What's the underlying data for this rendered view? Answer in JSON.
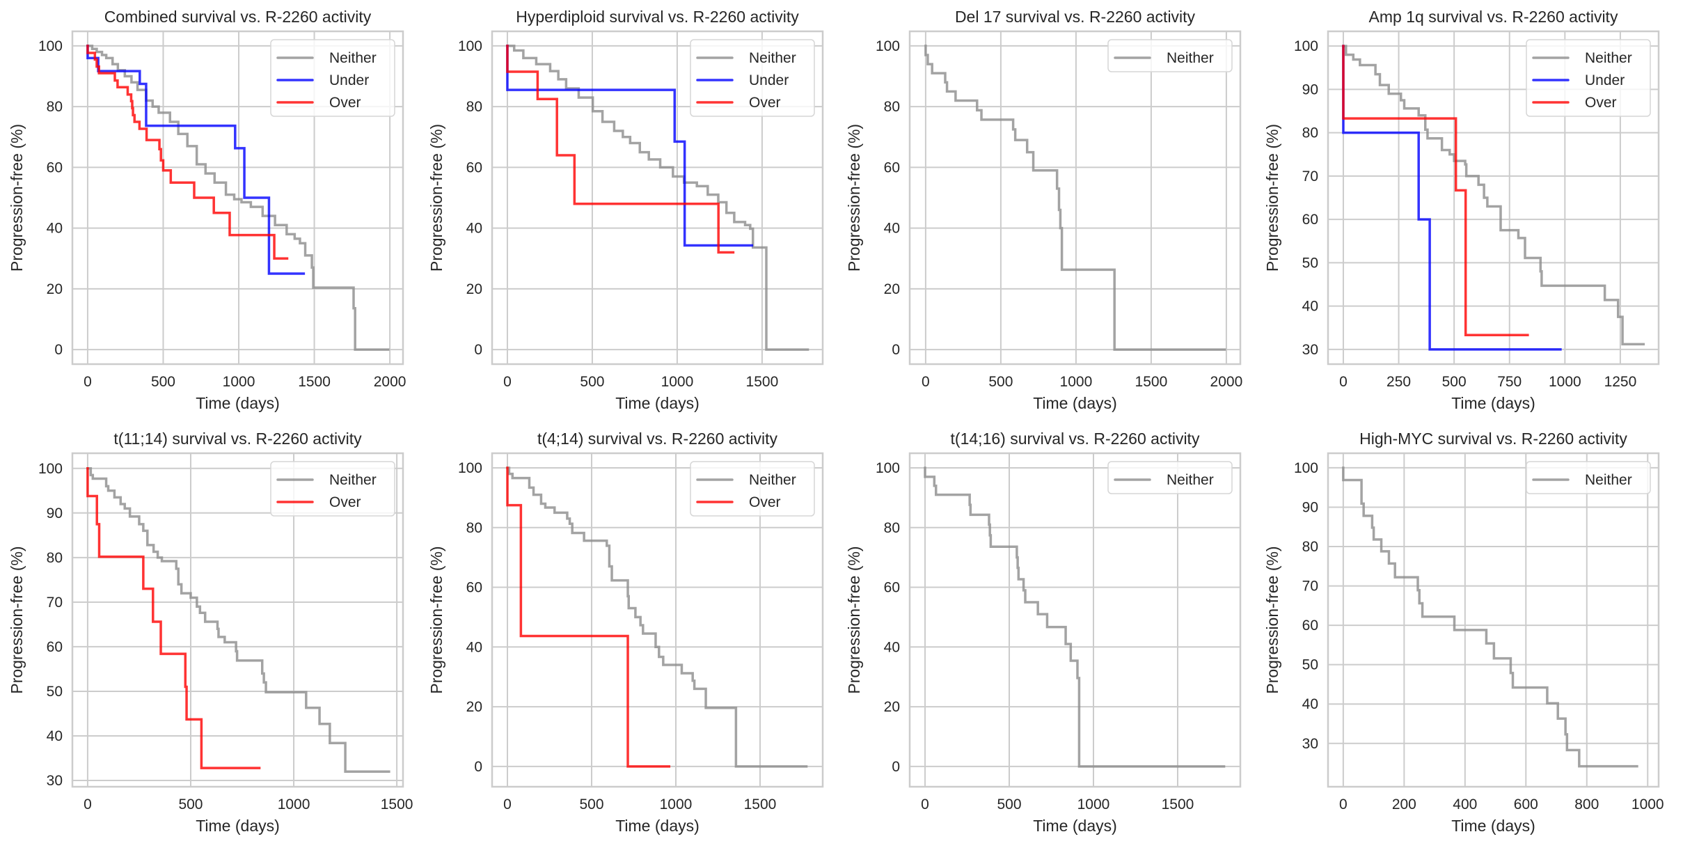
{
  "figure": {
    "colors": {
      "Neither": "#8c8c8c",
      "Under": "#0000ff",
      "Over": "#ff0000",
      "grid": "#cccccc",
      "frame": "#cccccc"
    }
  },
  "chart_data": [
    {
      "type": "line",
      "step": true,
      "title": "Combined survival vs. R-2260 activity",
      "xlabel": "Time (days)",
      "ylabel": "Progression-free (%)",
      "xlim": [
        -101,
        2087
      ],
      "ylim": [
        -4.8,
        104.8
      ],
      "xticks": [
        0,
        500,
        1000,
        1500,
        2000
      ],
      "yticks": [
        0,
        20,
        40,
        60,
        80,
        100
      ],
      "grid": true,
      "legend": "top-right",
      "series": [
        {
          "name": "Neither",
          "x": [
            0,
            30,
            60,
            95,
            123,
            165,
            200,
            246,
            290,
            330,
            387,
            430,
            470,
            545,
            600,
            660,
            722,
            780,
            840,
            915,
            970,
            1018,
            1080,
            1158,
            1240,
            1317,
            1370,
            1405,
            1440,
            1484,
            1493,
            1750,
            1760,
            1770,
            1989
          ],
          "y": [
            100,
            99,
            98,
            97,
            96,
            94,
            92,
            90,
            88,
            85.5,
            82,
            80,
            78,
            75,
            71,
            67,
            61,
            58,
            55,
            51,
            49.5,
            48.5,
            47,
            44,
            41,
            38,
            36.5,
            35,
            31,
            27,
            20.4,
            20.4,
            13.6,
            0,
            0
          ]
        },
        {
          "name": "Under",
          "x": [
            0,
            0,
            70,
            345,
            387,
            976,
            1037,
            1200,
            1430
          ],
          "y": [
            100,
            96,
            91.7,
            87.5,
            73.7,
            66.3,
            50,
            25,
            25
          ]
        },
        {
          "name": "Over",
          "x": [
            0,
            0,
            48,
            60,
            75,
            180,
            198,
            265,
            288,
            295,
            300,
            310,
            343,
            390,
            475,
            485,
            500,
            550,
            705,
            835,
            940,
            1235,
            1320
          ],
          "y": [
            100,
            97.7,
            95.5,
            93.2,
            91,
            88.6,
            86.4,
            84,
            81.8,
            79.5,
            77.2,
            75,
            72.7,
            69,
            66,
            62.3,
            59,
            55,
            50,
            45,
            37.7,
            30,
            30
          ]
        }
      ]
    },
    {
      "type": "line",
      "step": true,
      "title": "Hyperdiploid survival vs. R-2260 activity",
      "xlabel": "Time (days)",
      "ylabel": "Progression-free (%)",
      "xlim": [
        -90,
        1857
      ],
      "ylim": [
        -4.8,
        104.8
      ],
      "xticks": [
        0,
        500,
        1000,
        1500
      ],
      "yticks": [
        0,
        20,
        40,
        60,
        80,
        100
      ],
      "grid": true,
      "legend": "top-right",
      "series": [
        {
          "name": "Neither",
          "x": [
            0,
            40,
            94,
            170,
            252,
            300,
            346,
            420,
            503,
            560,
            629,
            680,
            723,
            780,
            833,
            900,
            975,
            1040,
            1116,
            1180,
            1242,
            1290,
            1336,
            1400,
            1430,
            1446,
            1516,
            1525,
            1525,
            1769
          ],
          "y": [
            100,
            98.5,
            96,
            94,
            91.7,
            89,
            86,
            83,
            78.5,
            75,
            72,
            70,
            68,
            65,
            62.6,
            60,
            57,
            55,
            53.8,
            51,
            48.5,
            45,
            42,
            41,
            39.8,
            33.6,
            33.6,
            28,
            0,
            0
          ]
        },
        {
          "name": "Under",
          "x": [
            0,
            0,
            985,
            1044,
            1440
          ],
          "y": [
            100,
            85.5,
            68.5,
            34.3,
            34.3
          ]
        },
        {
          "name": "Over",
          "x": [
            0,
            0,
            178,
            292,
            395,
            1243,
            1330
          ],
          "y": [
            100,
            91.5,
            82.5,
            64,
            48,
            32,
            32
          ]
        }
      ]
    },
    {
      "type": "line",
      "step": true,
      "title": "Del 17 survival vs. R-2260 activity",
      "xlabel": "Time (days)",
      "ylabel": "Progression-free (%)",
      "xlim": [
        -106,
        2093
      ],
      "ylim": [
        -4.8,
        104.8
      ],
      "xticks": [
        0,
        500,
        1000,
        1500,
        2000
      ],
      "yticks": [
        0,
        20,
        40,
        60,
        80,
        100
      ],
      "grid": true,
      "legend": "top-right",
      "series": [
        {
          "name": "Neither",
          "x": [
            0,
            0,
            14,
            43,
            130,
            142,
            199,
            342,
            371,
            582,
            596,
            675,
            716,
            874,
            887,
            896,
            906,
            1256,
            1989
          ],
          "y": [
            100,
            97,
            94,
            91,
            88,
            85,
            82,
            78.8,
            75.7,
            72.5,
            69,
            65,
            59,
            53,
            46,
            40,
            26.3,
            0,
            0
          ]
        }
      ]
    },
    {
      "type": "line",
      "step": true,
      "title": "Amp 1q survival vs. R-2260 activity",
      "xlabel": "Time (days)",
      "ylabel": "Progression-free (%)",
      "xlim": [
        -69,
        1423
      ],
      "ylim": [
        26.6,
        103.4
      ],
      "xticks": [
        0,
        250,
        500,
        750,
        1000,
        1250
      ],
      "yticks": [
        30,
        40,
        50,
        60,
        70,
        80,
        90,
        100
      ],
      "grid": true,
      "legend": "top-right",
      "series": [
        {
          "name": "Neither",
          "x": [
            0,
            12,
            45,
            75,
            145,
            165,
            205,
            260,
            275,
            340,
            370,
            380,
            445,
            480,
            500,
            550,
            555,
            610,
            635,
            650,
            710,
            790,
            820,
            890,
            895,
            1180,
            1240,
            1260,
            1355
          ],
          "y": [
            100,
            98,
            96.9,
            95.6,
            93.5,
            91,
            89,
            87.5,
            85.6,
            84,
            80.7,
            78.7,
            76,
            75,
            73.5,
            72.7,
            70,
            68,
            65,
            63,
            57.5,
            55.7,
            51.1,
            48,
            44.7,
            41.4,
            37.5,
            31.2,
            31.2
          ]
        },
        {
          "name": "Under",
          "x": [
            0,
            0,
            340,
            390,
            980
          ],
          "y": [
            100,
            80,
            60,
            30,
            30
          ]
        },
        {
          "name": "Over",
          "x": [
            0,
            0,
            508,
            552,
            832
          ],
          "y": [
            100,
            83.3,
            66.7,
            33.3,
            33.3
          ]
        }
      ]
    },
    {
      "type": "line",
      "step": true,
      "title": "t(11;14) survival vs. R-2260 activity",
      "xlabel": "Time (days)",
      "ylabel": "Progression-free (%)",
      "xlim": [
        -74,
        1530
      ],
      "ylim": [
        28.6,
        103.4
      ],
      "xticks": [
        0,
        500,
        1000,
        1500
      ],
      "yticks": [
        30,
        40,
        50,
        60,
        70,
        80,
        90,
        100
      ],
      "grid": true,
      "legend": "top-right",
      "series": [
        {
          "name": "Neither",
          "x": [
            0,
            15,
            25,
            90,
            100,
            130,
            160,
            180,
            205,
            250,
            270,
            290,
            320,
            340,
            360,
            430,
            440,
            455,
            500,
            530,
            545,
            570,
            630,
            635,
            665,
            720,
            725,
            847,
            855,
            865,
            1060,
            1125,
            1175,
            1250,
            1462
          ],
          "y": [
            100,
            98.5,
            97.7,
            96,
            95,
            93.5,
            92,
            91,
            89.2,
            87.5,
            86,
            82.8,
            81.3,
            80,
            79.2,
            77.5,
            74,
            72,
            71,
            69,
            67.6,
            65.6,
            64,
            62.2,
            61,
            59,
            56.9,
            54,
            52,
            49.8,
            46.3,
            42.7,
            38.4,
            32,
            32
          ]
        },
        {
          "name": "Over",
          "x": [
            0,
            0,
            45,
            56,
            270,
            317,
            355,
            474,
            480,
            552,
            833
          ],
          "y": [
            100,
            93.8,
            87.5,
            80.2,
            73,
            65.6,
            58.4,
            51,
            43.7,
            32.8,
            32.8
          ]
        }
      ]
    },
    {
      "type": "line",
      "step": true,
      "title": "t(4;14) survival vs. R-2260 activity",
      "xlabel": "Time (days)",
      "ylabel": "Progression-free (%)",
      "xlim": [
        -91,
        1872
      ],
      "ylim": [
        -6.8,
        104.9
      ],
      "xticks": [
        0,
        500,
        1000,
        1500
      ],
      "yticks": [
        0,
        20,
        40,
        60,
        80,
        100
      ],
      "grid": true,
      "legend": "top-right",
      "series": [
        {
          "name": "Neither",
          "x": [
            0,
            10,
            30,
            130,
            155,
            200,
            225,
            280,
            355,
            370,
            385,
            455,
            590,
            605,
            620,
            715,
            720,
            760,
            790,
            805,
            880,
            900,
            925,
            1035,
            1100,
            1110,
            1178,
            1357,
            1775
          ],
          "y": [
            100,
            98,
            96.6,
            93.4,
            91,
            88,
            86.7,
            85,
            83,
            81.3,
            78.2,
            75.6,
            73.9,
            67,
            62.3,
            57,
            53,
            50,
            47.3,
            44.5,
            40,
            36.7,
            34,
            31.2,
            28.7,
            26,
            19.6,
            0,
            0
          ]
        },
        {
          "name": "Over",
          "x": [
            0,
            0,
            80,
            715,
            960
          ],
          "y": [
            100,
            87.5,
            43.7,
            0,
            0
          ]
        }
      ]
    },
    {
      "type": "line",
      "step": true,
      "title": "t(14;16) survival vs. R-2260 activity",
      "xlabel": "Time (days)",
      "ylabel": "Progression-free (%)",
      "xlim": [
        -91,
        1872
      ],
      "ylim": [
        -6.8,
        104.9
      ],
      "xticks": [
        0,
        500,
        1000,
        1500
      ],
      "yticks": [
        0,
        20,
        40,
        60,
        80,
        100
      ],
      "grid": true,
      "legend": "top-right",
      "series": [
        {
          "name": "Neither",
          "x": [
            0,
            0,
            55,
            65,
            265,
            270,
            380,
            385,
            390,
            545,
            550,
            555,
            585,
            595,
            670,
            725,
            835,
            865,
            905,
            915,
            1775
          ],
          "y": [
            100,
            97,
            94,
            91,
            87.6,
            84.3,
            81,
            77.4,
            73.6,
            70,
            66.5,
            62.7,
            59,
            55,
            51,
            46.7,
            41,
            35.4,
            29.6,
            0,
            0
          ]
        }
      ]
    },
    {
      "type": "line",
      "step": true,
      "title": "High-MYC survival vs. R-2260 activity",
      "xlabel": "Time (days)",
      "ylabel": "Progression-free (%)",
      "xlim": [
        -50,
        1036
      ],
      "ylim": [
        19,
        103.7
      ],
      "xticks": [
        0,
        200,
        400,
        600,
        800,
        1000
      ],
      "yticks": [
        30,
        40,
        50,
        60,
        70,
        80,
        90,
        100
      ],
      "grid": true,
      "legend": "top-right",
      "series": [
        {
          "name": "Neither",
          "x": [
            0,
            0,
            60,
            67,
            95,
            100,
            125,
            150,
            170,
            245,
            250,
            260,
            365,
            470,
            495,
            550,
            557,
            670,
            705,
            730,
            735,
            775,
            965
          ],
          "y": [
            100,
            96.9,
            90.9,
            87.8,
            84.8,
            81.8,
            78.8,
            75.7,
            72.2,
            68.9,
            65.6,
            62.2,
            58.8,
            55.4,
            51.6,
            47.9,
            44.2,
            40.2,
            36.3,
            32.3,
            28.3,
            24.2,
            24.2
          ]
        }
      ]
    }
  ]
}
